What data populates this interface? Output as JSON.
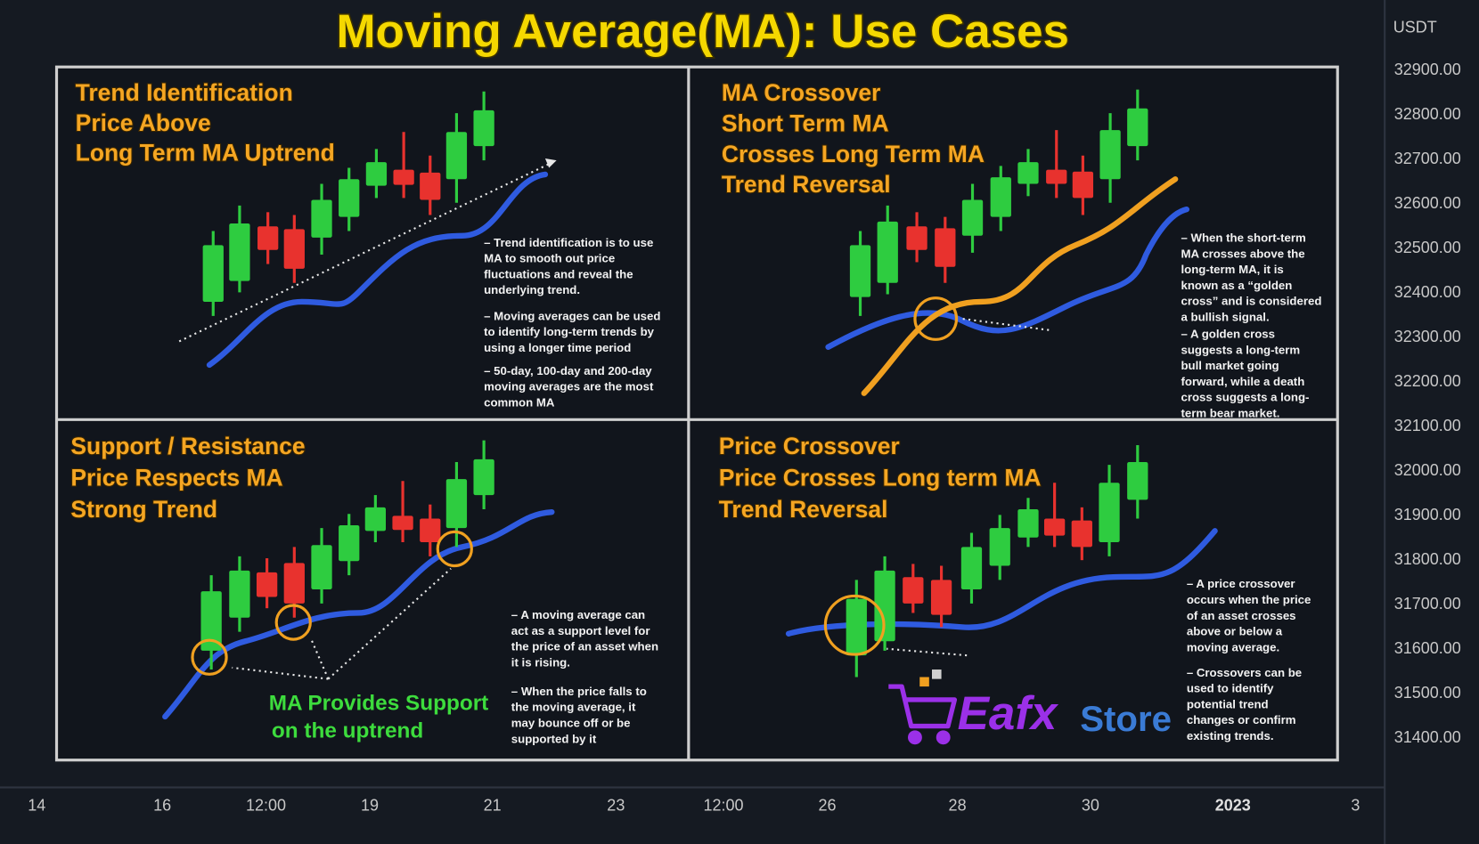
{
  "title": "Moving Average(MA): Use Cases",
  "price_axis": {
    "unit": "USDT",
    "labels": [
      "32900.00",
      "32800.00",
      "32700.00",
      "32600.00",
      "32500.00",
      "32400.00",
      "32300.00",
      "32200.00",
      "32100.00",
      "32000.00",
      "31900.00",
      "31800.00",
      "31700.00",
      "31600.00",
      "31500.00",
      "31400.00"
    ]
  },
  "time_axis": {
    "labels": [
      "14",
      "16",
      "12:00",
      "19",
      "21",
      "23",
      "12:00",
      "26",
      "28",
      "30",
      "2023",
      "3"
    ]
  },
  "panels": [
    {
      "heading": [
        "Trend Identification",
        "Price Above",
        "Long Term MA Uptrend"
      ],
      "notes": [
        [
          "– Trend identification is to use",
          "MA to smooth out price",
          "fluctuations and reveal the",
          "underlying trend."
        ],
        [
          "– Moving averages can be used",
          "to identify long-term trends by",
          "using a longer time period"
        ],
        [
          "– 50-day, 100-day and 200-day",
          "moving averages are the most",
          "common MA"
        ]
      ]
    },
    {
      "heading": [
        "MA Crossover",
        "Short Term MA",
        "Crosses Long Term MA",
        "Trend Reversal"
      ],
      "notes": [
        [
          "– When the short-term",
          "MA crosses above the",
          "long-term MA, it is",
          "known as a “golden",
          "cross” and is considered",
          "a bullish signal."
        ],
        [
          "– A golden cross",
          "suggests a long-term",
          "bull market going",
          "forward, while a death",
          "cross suggests a long-",
          "term bear market."
        ]
      ]
    },
    {
      "heading": [
        "Support / Resistance",
        "Price Respects MA",
        "Strong Trend"
      ],
      "notes": [
        [
          "– A moving average can",
          "act as a support level for",
          "the price of an asset when",
          "it is rising."
        ],
        [
          "– When the price falls to",
          "the moving average, it",
          "may bounce off or be",
          "supported by it"
        ]
      ],
      "annotation": [
        "MA Provides Support",
        "on the uptrend"
      ]
    },
    {
      "heading": [
        "Price Crossover",
        "Price Crosses Long term MA",
        "Trend Reversal"
      ],
      "notes": [
        [
          "– A price crossover",
          "occurs when the price",
          "of an asset crosses",
          "above or below a",
          "moving average."
        ],
        [
          "– Crossovers can be",
          "used to identify",
          "potential trend",
          "changes or confirm",
          "existing trends."
        ]
      ]
    }
  ],
  "brand": {
    "name": "Eafx",
    "suffix": "Store"
  }
}
